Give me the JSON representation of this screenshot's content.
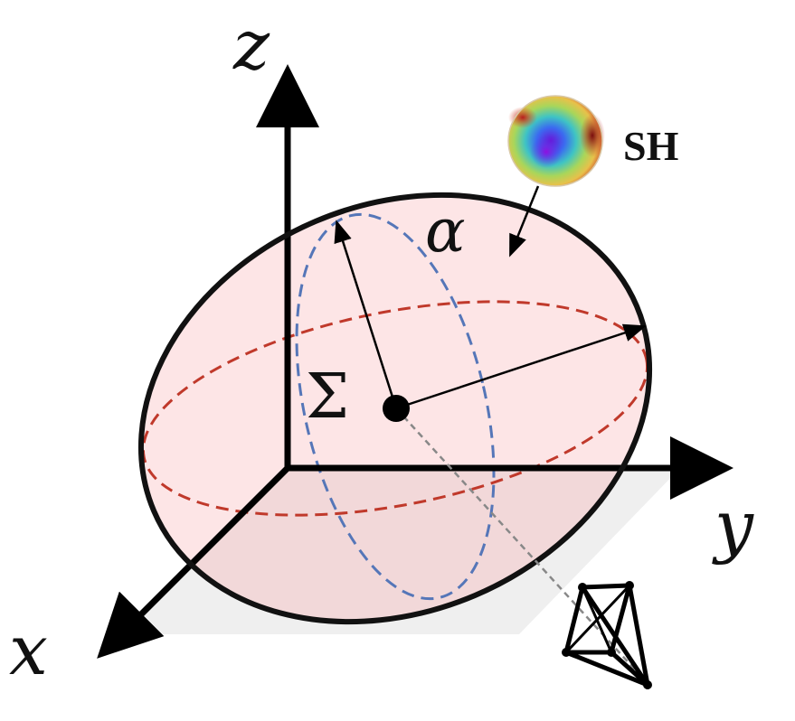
{
  "axes": {
    "x_label": "x",
    "y_label": "y",
    "z_label": "z"
  },
  "labels": {
    "opacity": "α",
    "covariance": "Σ",
    "spherical_harmonics": "SH"
  },
  "colors": {
    "ellipsoid_fill": "#fde0e2",
    "ellipsoid_outline": "#111111",
    "horizontal_ellipse": "#c0392b",
    "vertical_ellipse": "#5576b8",
    "ground_plane": "#efefef",
    "axis": "#000000",
    "projection_line": "#888888"
  },
  "icons": {
    "sh_sphere": "spherical-harmonics-sphere-icon",
    "camera": "camera-frustum-icon"
  }
}
